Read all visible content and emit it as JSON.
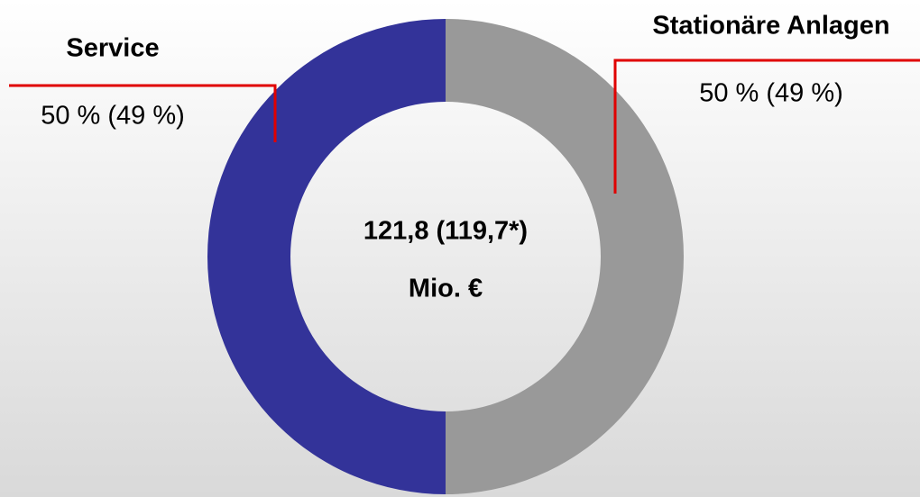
{
  "chart_data": {
    "type": "donut",
    "categories": [
      "Service",
      "Stationäre Anlagen"
    ],
    "values": [
      50,
      50
    ],
    "value_labels": [
      "50 % (49 %)",
      "50 % (49 %)"
    ],
    "colors": [
      "#333399",
      "#999999"
    ],
    "center_text": [
      "121,8 (119,7*)",
      "Mio. €"
    ]
  }
}
